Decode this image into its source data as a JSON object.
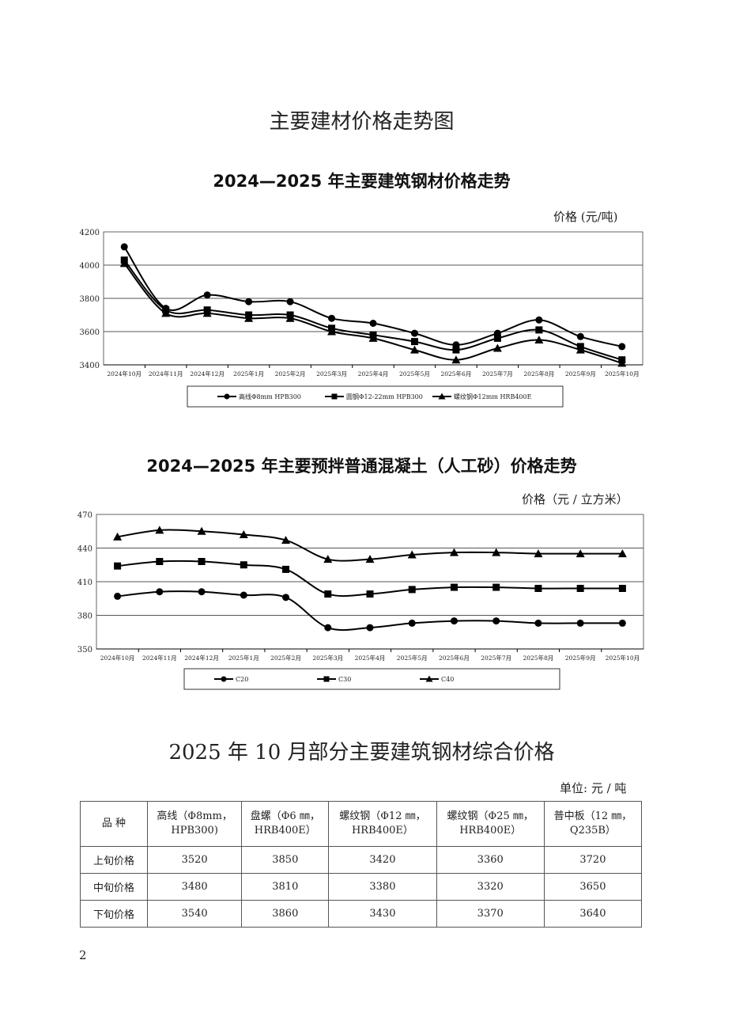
{
  "page_title": "主要建材价格走势图",
  "page_number": "2",
  "chart_data": [
    {
      "type": "line",
      "title": "2024—2025 年主要建筑钢材价格走势",
      "ylabel": "价格 (元/吨)",
      "categories": [
        "2024年10月",
        "2024年11月",
        "2024年12月",
        "2025年1月",
        "2025年2月",
        "2025年3月",
        "2025年4月",
        "2025年5月",
        "2025年6月",
        "2025年7月",
        "2025年8月",
        "2025年9月",
        "2025年10月"
      ],
      "ylim": [
        3400,
        4200
      ],
      "yticks": [
        3400,
        3600,
        3800,
        4000,
        4200
      ],
      "grid": true,
      "legend": "bottom",
      "series": [
        {
          "name": "高线Φ8mm HPB300",
          "marker": "circle",
          "values": [
            4110,
            3740,
            3820,
            3780,
            3780,
            3680,
            3650,
            3590,
            3520,
            3590,
            3670,
            3570,
            3510
          ]
        },
        {
          "name": "圆钢Φ12-22mm HPB300",
          "marker": "square",
          "values": [
            4030,
            3730,
            3730,
            3700,
            3700,
            3620,
            3580,
            3540,
            3490,
            3560,
            3610,
            3510,
            3430
          ]
        },
        {
          "name": "螺纹钢Φ12mm HRB400E",
          "marker": "triangle",
          "values": [
            4010,
            3710,
            3710,
            3680,
            3680,
            3600,
            3560,
            3490,
            3430,
            3500,
            3550,
            3490,
            3410
          ]
        }
      ]
    },
    {
      "type": "line",
      "title": "2024—2025 年主要预拌普通混凝土（人工砂）价格走势",
      "ylabel": "价格（元 / 立方米）",
      "categories": [
        "2024年10月",
        "2024年11月",
        "2024年12月",
        "2025年1月",
        "2025年2月",
        "2025年3月",
        "2025年4月",
        "2025年5月",
        "2025年6月",
        "2025年7月",
        "2025年8月",
        "2025年9月",
        "2025年10月"
      ],
      "ylim": [
        350,
        470
      ],
      "yticks": [
        350,
        380,
        410,
        440,
        470
      ],
      "grid": true,
      "legend": "bottom",
      "series": [
        {
          "name": "C20",
          "marker": "circle",
          "values": [
            397,
            401,
            401,
            398,
            396,
            369,
            369,
            373,
            375,
            375,
            373,
            373,
            373
          ]
        },
        {
          "name": "C30",
          "marker": "square",
          "values": [
            424,
            428,
            428,
            425,
            421,
            399,
            399,
            403,
            405,
            405,
            404,
            404,
            404
          ]
        },
        {
          "name": "C40",
          "marker": "triangle",
          "values": [
            450,
            456,
            455,
            452,
            447,
            430,
            430,
            434,
            436,
            436,
            435,
            435,
            435
          ]
        }
      ]
    }
  ],
  "table": {
    "title": "2025 年 10 月部分主要建筑钢材综合价格",
    "unit": "单位: 元 / 吨",
    "headers": [
      "品 种",
      "高线（Φ8mm，\nHPB300)",
      "盘螺（Φ6 ㎜，\nHRB400E）",
      "螺纹钢（Φ12 ㎜，\nHRB400E）",
      "螺纹钢（Φ25 ㎜，\nHRB400E）",
      "普中板（12 ㎜，\nQ235B）"
    ],
    "rows": [
      [
        "上旬价格",
        "3520",
        "3850",
        "3420",
        "3360",
        "3720"
      ],
      [
        "中旬价格",
        "3480",
        "3810",
        "3380",
        "3320",
        "3650"
      ],
      [
        "下旬价格",
        "3540",
        "3860",
        "3430",
        "3370",
        "3640"
      ]
    ]
  }
}
